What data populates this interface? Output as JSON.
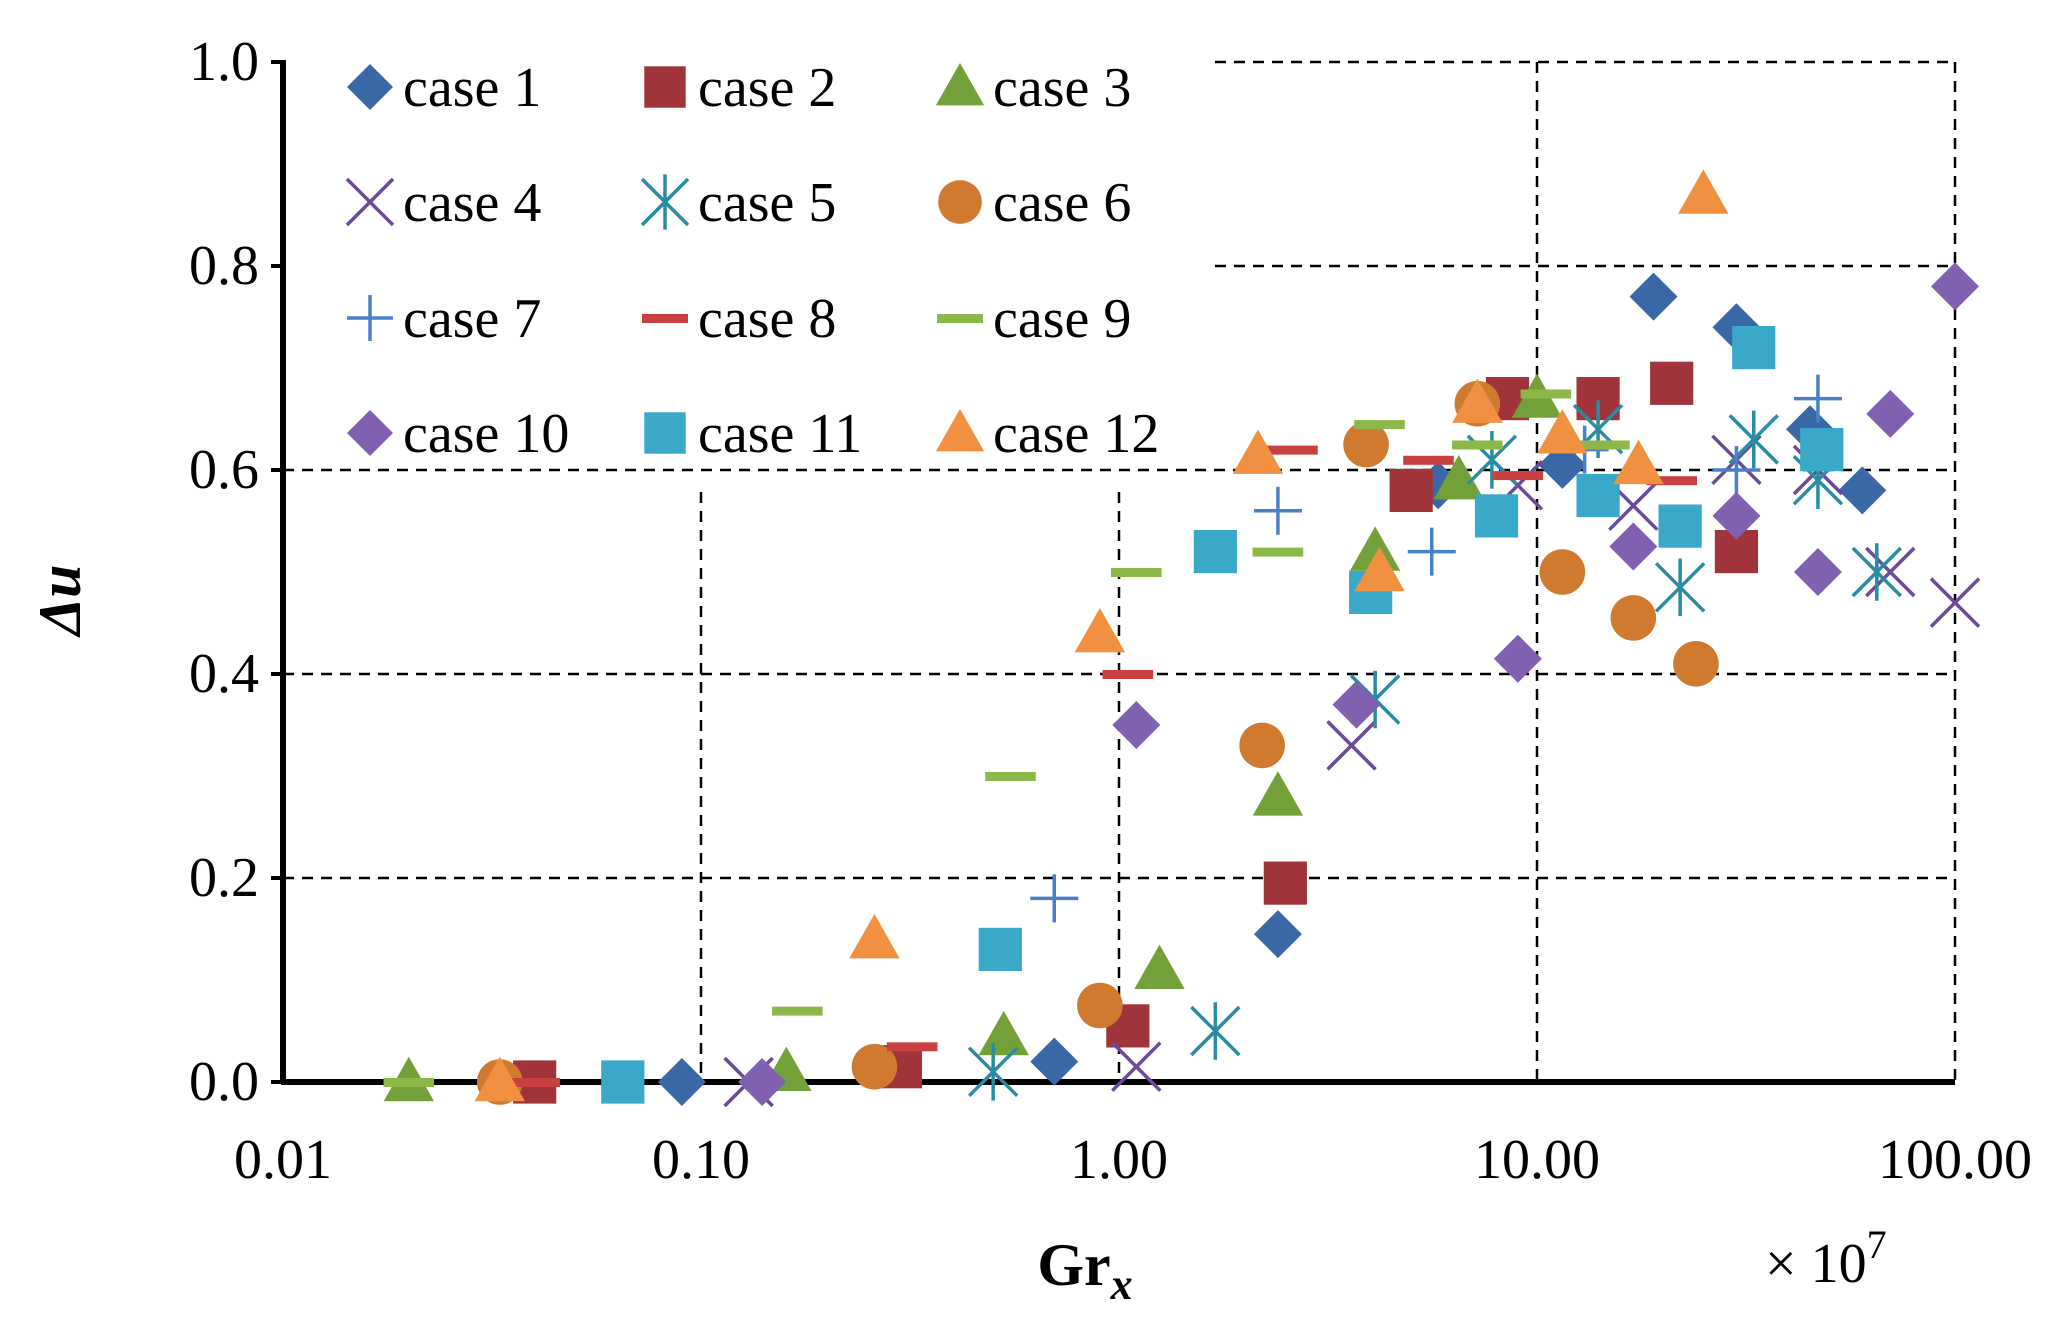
{
  "chart_data": {
    "type": "scatter",
    "xscale": "log",
    "xlim": [
      0.01,
      100
    ],
    "ylim": [
      0,
      1
    ],
    "xticks": [
      "0.01",
      "0.10",
      "1.00",
      "10.00",
      "100.00"
    ],
    "yticks": [
      "0.0",
      "0.2",
      "0.4",
      "0.6",
      "0.8",
      "1.0"
    ],
    "xlabel": "Gr",
    "xlabel_sub": "x",
    "ylabel": "Δu",
    "x_multiplier": "× 10",
    "x_multiplier_exp": "7",
    "grid": true,
    "legend_position": "top-left",
    "series": [
      {
        "name": "case 1",
        "marker": "diamond",
        "color": "#3a67a6",
        "points": [
          [
            0.09,
            0.0
          ],
          [
            0.7,
            0.02
          ],
          [
            2.4,
            0.145
          ],
          [
            5.8,
            0.585
          ],
          [
            11.5,
            0.605
          ],
          [
            19,
            0.77
          ],
          [
            30,
            0.74
          ],
          [
            45,
            0.64
          ],
          [
            60,
            0.58
          ]
        ]
      },
      {
        "name": "case 2",
        "marker": "square",
        "color": "#a0343a",
        "points": [
          [
            0.04,
            0.0
          ],
          [
            0.3,
            0.015
          ],
          [
            1.05,
            0.055
          ],
          [
            2.5,
            0.195
          ],
          [
            5,
            0.58
          ],
          [
            8.5,
            0.67
          ],
          [
            14,
            0.67
          ],
          [
            21,
            0.685
          ],
          [
            30,
            0.52
          ]
        ]
      },
      {
        "name": "case 3",
        "marker": "triangle",
        "color": "#74a03a",
        "points": [
          [
            0.02,
            0.0
          ],
          [
            0.16,
            0.01
          ],
          [
            0.53,
            0.045
          ],
          [
            1.25,
            0.11
          ],
          [
            2.4,
            0.28
          ],
          [
            4.1,
            0.52
          ],
          [
            6.5,
            0.59
          ],
          [
            10,
            0.67
          ]
        ]
      },
      {
        "name": "case 4",
        "marker": "x",
        "color": "#6b4a9a",
        "points": [
          [
            0.13,
            0.0
          ],
          [
            1.1,
            0.015
          ],
          [
            3.6,
            0.33
          ],
          [
            9,
            0.585
          ],
          [
            17,
            0.565
          ],
          [
            30,
            0.61
          ],
          [
            47,
            0.6
          ],
          [
            70,
            0.5
          ],
          [
            100,
            0.47
          ]
        ]
      },
      {
        "name": "case 5",
        "marker": "asterisk",
        "color": "#2a8ca0",
        "points": [
          [
            0.5,
            0.01
          ],
          [
            1.7,
            0.05
          ],
          [
            4.1,
            0.375
          ],
          [
            7.8,
            0.61
          ],
          [
            14,
            0.64
          ],
          [
            22,
            0.485
          ],
          [
            33,
            0.63
          ],
          [
            47,
            0.59
          ],
          [
            65,
            0.5
          ]
        ]
      },
      {
        "name": "case 6",
        "marker": "circle",
        "color": "#d07a30",
        "points": [
          [
            0.033,
            0.0
          ],
          [
            0.26,
            0.015
          ],
          [
            0.9,
            0.075
          ],
          [
            2.2,
            0.33
          ],
          [
            3.9,
            0.625
          ],
          [
            7.2,
            0.665
          ],
          [
            11.5,
            0.5
          ],
          [
            17,
            0.455
          ],
          [
            24,
            0.41
          ]
        ]
      },
      {
        "name": "case 7",
        "marker": "plus",
        "color": "#4a80c8",
        "points": [
          [
            0.7,
            0.18
          ],
          [
            2.4,
            0.56
          ],
          [
            5.6,
            0.52
          ],
          [
            13,
            0.62
          ],
          [
            30,
            0.6
          ],
          [
            47,
            0.67
          ]
        ]
      },
      {
        "name": "case 8",
        "marker": "dash",
        "color": "#c84040",
        "points": [
          [
            0.04,
            0.0
          ],
          [
            0.32,
            0.035
          ],
          [
            1.05,
            0.4
          ],
          [
            2.6,
            0.62
          ],
          [
            5.5,
            0.61
          ],
          [
            9,
            0.595
          ],
          [
            21,
            0.59
          ]
        ]
      },
      {
        "name": "case 9",
        "marker": "dash",
        "color": "#8cb84a",
        "points": [
          [
            0.02,
            0.0
          ],
          [
            0.17,
            0.07
          ],
          [
            0.55,
            0.3
          ],
          [
            1.1,
            0.5
          ],
          [
            2.4,
            0.52
          ],
          [
            4.2,
            0.645
          ],
          [
            7.2,
            0.625
          ],
          [
            10.5,
            0.675
          ],
          [
            14.5,
            0.625
          ]
        ]
      },
      {
        "name": "case 10",
        "marker": "diamond",
        "color": "#8060b0",
        "points": [
          [
            0.14,
            0.0
          ],
          [
            1.1,
            0.35
          ],
          [
            3.7,
            0.37
          ],
          [
            9,
            0.415
          ],
          [
            17,
            0.525
          ],
          [
            30,
            0.555
          ],
          [
            47,
            0.5
          ],
          [
            70,
            0.655
          ],
          [
            100,
            0.78
          ]
        ]
      },
      {
        "name": "case 11",
        "marker": "square",
        "color": "#3aa8c8",
        "points": [
          [
            0.065,
            0.0
          ],
          [
            0.52,
            0.13
          ],
          [
            1.7,
            0.52
          ],
          [
            4,
            0.48
          ],
          [
            8,
            0.555
          ],
          [
            14,
            0.575
          ],
          [
            22,
            0.545
          ],
          [
            33,
            0.72
          ],
          [
            48,
            0.62
          ]
        ]
      },
      {
        "name": "case 12",
        "marker": "triangle",
        "color": "#f09040",
        "points": [
          [
            0.033,
            0.0
          ],
          [
            0.26,
            0.14
          ],
          [
            0.9,
            0.44
          ],
          [
            2.15,
            0.615
          ],
          [
            4.2,
            0.5
          ],
          [
            7.2,
            0.665
          ],
          [
            11.5,
            0.635
          ],
          [
            17.5,
            0.605
          ],
          [
            25,
            0.87
          ]
        ]
      }
    ]
  }
}
